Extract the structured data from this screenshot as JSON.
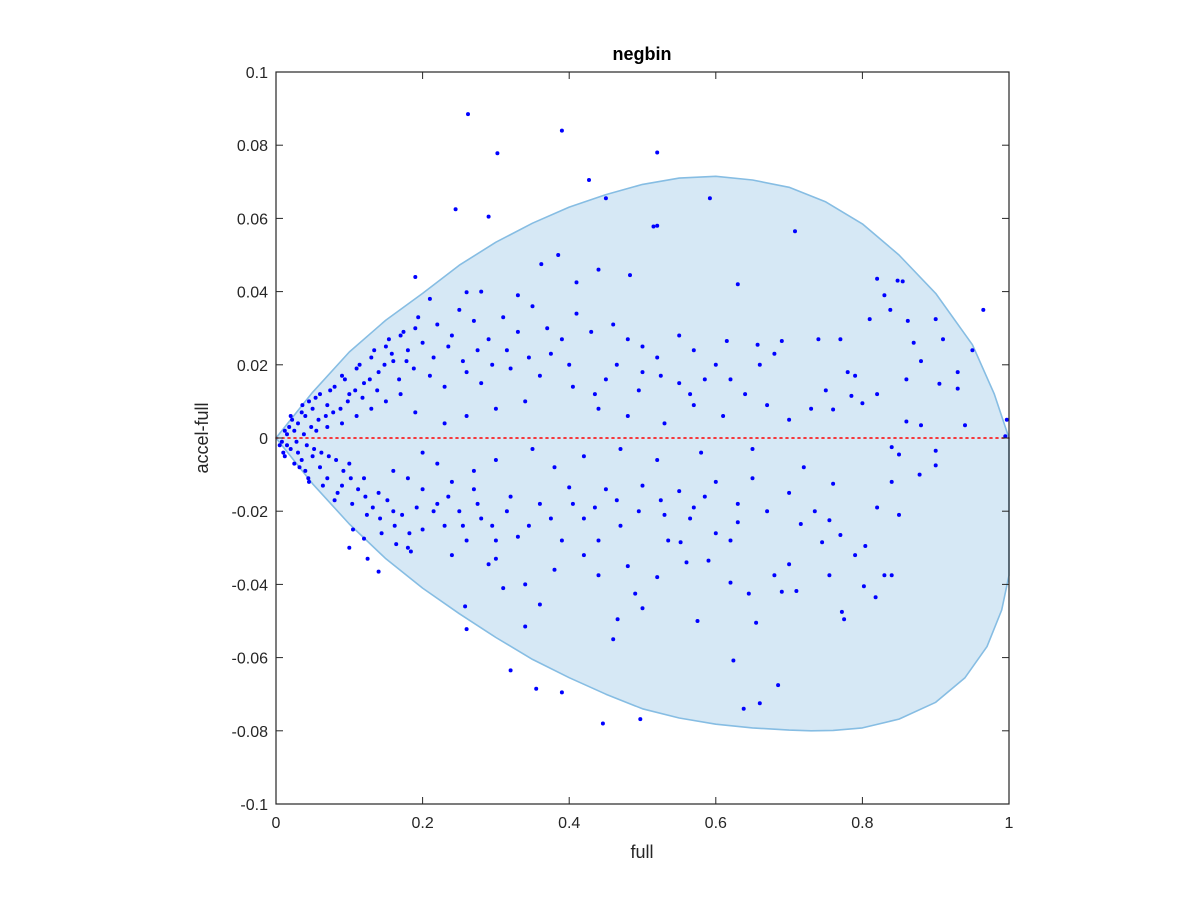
{
  "chart_data": {
    "type": "scatter",
    "title": "negbin",
    "xlabel": "full",
    "ylabel": "accel-full",
    "xlim": [
      0,
      1
    ],
    "ylim": [
      -0.1,
      0.1
    ],
    "x_ticks": [
      0,
      0.2,
      0.4,
      0.6,
      0.8,
      1
    ],
    "x_tick_labels": [
      "0",
      "0.2",
      "0.4",
      "0.6",
      "0.8",
      "1"
    ],
    "y_ticks": [
      -0.1,
      -0.08,
      -0.06,
      -0.04,
      -0.02,
      0,
      0.02,
      0.04,
      0.06,
      0.08,
      0.1
    ],
    "y_tick_labels": [
      "-0.1",
      "-0.08",
      "-0.06",
      "-0.04",
      "-0.02",
      "0",
      "0.02",
      "0.04",
      "0.06",
      "0.08",
      "0.1"
    ],
    "grid": false,
    "colors": {
      "points": "#0000ff",
      "region_fill": "#d6e8f5",
      "region_edge": "#86bde3",
      "reference_line": "#ff0000"
    },
    "reference_line": {
      "y": 0,
      "style": "dotted"
    },
    "region_upper": [
      {
        "x": 0,
        "y": 0
      },
      {
        "x": 0.05,
        "y": 0.0125
      },
      {
        "x": 0.1,
        "y": 0.0235
      },
      {
        "x": 0.15,
        "y": 0.0322
      },
      {
        "x": 0.2,
        "y": 0.0395
      },
      {
        "x": 0.25,
        "y": 0.0472
      },
      {
        "x": 0.3,
        "y": 0.0535
      },
      {
        "x": 0.35,
        "y": 0.0587
      },
      {
        "x": 0.4,
        "y": 0.0631
      },
      {
        "x": 0.45,
        "y": 0.0665
      },
      {
        "x": 0.5,
        "y": 0.0693
      },
      {
        "x": 0.55,
        "y": 0.071
      },
      {
        "x": 0.6,
        "y": 0.0715
      },
      {
        "x": 0.65,
        "y": 0.0705
      },
      {
        "x": 0.7,
        "y": 0.0685
      },
      {
        "x": 0.75,
        "y": 0.0645
      },
      {
        "x": 0.8,
        "y": 0.0585
      },
      {
        "x": 0.85,
        "y": 0.05
      },
      {
        "x": 0.9,
        "y": 0.0395
      },
      {
        "x": 0.95,
        "y": 0.0255
      },
      {
        "x": 0.98,
        "y": 0.012
      },
      {
        "x": 1.0,
        "y": 0.0
      }
    ],
    "region_lower": [
      {
        "x": 0,
        "y": 0
      },
      {
        "x": 0.05,
        "y": -0.0125
      },
      {
        "x": 0.1,
        "y": -0.0235
      },
      {
        "x": 0.15,
        "y": -0.033
      },
      {
        "x": 0.2,
        "y": -0.041
      },
      {
        "x": 0.25,
        "y": -0.048
      },
      {
        "x": 0.3,
        "y": -0.0545
      },
      {
        "x": 0.35,
        "y": -0.0605
      },
      {
        "x": 0.4,
        "y": -0.0655
      },
      {
        "x": 0.45,
        "y": -0.07
      },
      {
        "x": 0.5,
        "y": -0.074
      },
      {
        "x": 0.55,
        "y": -0.0765
      },
      {
        "x": 0.6,
        "y": -0.0782
      },
      {
        "x": 0.65,
        "y": -0.0792
      },
      {
        "x": 0.7,
        "y": -0.0798
      },
      {
        "x": 0.73,
        "y": -0.08
      },
      {
        "x": 0.76,
        "y": -0.0799
      },
      {
        "x": 0.8,
        "y": -0.0792
      },
      {
        "x": 0.85,
        "y": -0.0768
      },
      {
        "x": 0.9,
        "y": -0.0722
      },
      {
        "x": 0.94,
        "y": -0.0655
      },
      {
        "x": 0.97,
        "y": -0.057
      },
      {
        "x": 0.99,
        "y": -0.047
      },
      {
        "x": 1.0,
        "y": -0.0375
      },
      {
        "x": 1.0,
        "y": 0.0
      }
    ],
    "points": [
      [
        0.262,
        0.0885
      ],
      [
        0.39,
        0.084
      ],
      [
        0.302,
        0.0778
      ],
      [
        0.52,
        0.078
      ],
      [
        0.427,
        0.0705
      ],
      [
        0.245,
        0.0625
      ],
      [
        0.29,
        0.0605
      ],
      [
        0.45,
        0.0655
      ],
      [
        0.592,
        0.0655
      ],
      [
        0.708,
        0.0565
      ],
      [
        0.52,
        0.058
      ],
      [
        0.515,
        0.0578
      ],
      [
        0.19,
        0.044
      ],
      [
        0.483,
        0.0445
      ],
      [
        0.965,
        0.035
      ],
      [
        0.848,
        0.043
      ],
      [
        0.855,
        0.0428
      ],
      [
        0.82,
        0.0435
      ],
      [
        0.83,
        0.039
      ],
      [
        0.838,
        0.035
      ],
      [
        0.21,
        0.038
      ],
      [
        0.26,
        0.0398
      ],
      [
        0.28,
        0.04
      ],
      [
        0.33,
        0.039
      ],
      [
        0.41,
        0.0425
      ],
      [
        0.362,
        0.0475
      ],
      [
        0.385,
        0.05
      ],
      [
        0.44,
        0.046
      ],
      [
        0.63,
        0.042
      ],
      [
        0.81,
        0.0325
      ],
      [
        0.9,
        0.0325
      ],
      [
        0.862,
        0.032
      ],
      [
        0.95,
        0.024
      ],
      [
        0.93,
        0.0135
      ],
      [
        0.905,
        0.0148
      ],
      [
        0.997,
        0.005
      ],
      [
        0.995,
        0.0005
      ],
      [
        0.74,
        0.027
      ],
      [
        0.77,
        0.027
      ],
      [
        0.69,
        0.0265
      ],
      [
        0.615,
        0.0265
      ],
      [
        0.657,
        0.0255
      ],
      [
        0.68,
        0.023
      ],
      [
        0.66,
        0.02
      ],
      [
        0.79,
        0.017
      ],
      [
        0.785,
        0.0115
      ],
      [
        0.76,
        0.0078
      ],
      [
        0.8,
        0.0095
      ],
      [
        0.88,
        0.0035
      ],
      [
        0.86,
        0.0045
      ],
      [
        0.84,
        -0.0025
      ],
      [
        0.85,
        -0.0045
      ],
      [
        0.878,
        -0.01
      ],
      [
        0.9,
        -0.0075
      ],
      [
        0.9,
        -0.0035
      ],
      [
        0.94,
        0.0035
      ],
      [
        0.82,
        -0.019
      ],
      [
        0.85,
        -0.021
      ],
      [
        0.84,
        -0.012
      ],
      [
        0.76,
        -0.0125
      ],
      [
        0.735,
        -0.02
      ],
      [
        0.755,
        -0.0225
      ],
      [
        0.79,
        -0.032
      ],
      [
        0.802,
        -0.0405
      ],
      [
        0.818,
        -0.0435
      ],
      [
        0.84,
        -0.0375
      ],
      [
        0.775,
        -0.0495
      ],
      [
        0.772,
        -0.0475
      ],
      [
        0.755,
        -0.0375
      ],
      [
        0.7,
        -0.0345
      ],
      [
        0.716,
        -0.0235
      ],
      [
        0.71,
        -0.0418
      ],
      [
        0.68,
        -0.0375
      ],
      [
        0.69,
        -0.042
      ],
      [
        0.745,
        -0.0285
      ],
      [
        0.77,
        -0.0265
      ],
      [
        0.804,
        -0.0295
      ],
      [
        0.83,
        -0.0375
      ],
      [
        0.685,
        -0.0675
      ],
      [
        0.66,
        -0.0725
      ],
      [
        0.638,
        -0.074
      ],
      [
        0.624,
        -0.0608
      ],
      [
        0.655,
        -0.0505
      ],
      [
        0.62,
        -0.0395
      ],
      [
        0.645,
        -0.0425
      ],
      [
        0.62,
        -0.028
      ],
      [
        0.63,
        -0.023
      ],
      [
        0.59,
        -0.0335
      ],
      [
        0.575,
        -0.05
      ],
      [
        0.552,
        -0.0285
      ],
      [
        0.535,
        -0.028
      ],
      [
        0.5,
        -0.0465
      ],
      [
        0.49,
        -0.0425
      ],
      [
        0.466,
        -0.0495
      ],
      [
        0.46,
        -0.055
      ],
      [
        0.44,
        -0.0375
      ],
      [
        0.42,
        -0.032
      ],
      [
        0.39,
        -0.028
      ],
      [
        0.36,
        -0.0455
      ],
      [
        0.355,
        -0.0685
      ],
      [
        0.39,
        -0.0695
      ],
      [
        0.446,
        -0.078
      ],
      [
        0.497,
        -0.0768
      ],
      [
        0.32,
        -0.0635
      ],
      [
        0.34,
        -0.0515
      ],
      [
        0.31,
        -0.041
      ],
      [
        0.258,
        -0.046
      ],
      [
        0.26,
        -0.0522
      ],
      [
        0.24,
        -0.032
      ],
      [
        0.29,
        -0.0345
      ],
      [
        0.3,
        -0.028
      ],
      [
        0.33,
        -0.027
      ],
      [
        0.28,
        -0.022
      ],
      [
        0.25,
        -0.02
      ],
      [
        0.2,
        -0.025
      ],
      [
        0.18,
        -0.03
      ],
      [
        0.14,
        -0.0365
      ],
      [
        0.125,
        -0.033
      ],
      [
        0.12,
        -0.0275
      ],
      [
        0.1,
        -0.03
      ],
      [
        0.105,
        -0.025
      ],
      [
        0.16,
        -0.02
      ],
      [
        0.22,
        -0.018
      ],
      [
        0.4,
        -0.0135
      ],
      [
        0.45,
        -0.014
      ],
      [
        0.5,
        -0.013
      ],
      [
        0.55,
        -0.0145
      ],
      [
        0.6,
        -0.012
      ],
      [
        0.65,
        -0.011
      ],
      [
        0.7,
        -0.015
      ],
      [
        0.72,
        -0.008
      ],
      [
        0.65,
        -0.003
      ],
      [
        0.58,
        -0.004
      ],
      [
        0.52,
        -0.006
      ],
      [
        0.47,
        -0.003
      ],
      [
        0.42,
        -0.005
      ],
      [
        0.38,
        -0.008
      ],
      [
        0.35,
        -0.003
      ],
      [
        0.3,
        -0.006
      ],
      [
        0.27,
        -0.009
      ],
      [
        0.24,
        -0.012
      ],
      [
        0.22,
        -0.007
      ],
      [
        0.2,
        -0.004
      ],
      [
        0.18,
        -0.011
      ],
      [
        0.16,
        -0.009
      ],
      [
        0.14,
        -0.015
      ],
      [
        0.12,
        -0.011
      ],
      [
        0.1,
        -0.007
      ],
      [
        0.09,
        -0.013
      ],
      [
        0.08,
        -0.017
      ],
      [
        0.07,
        -0.011
      ],
      [
        0.06,
        -0.008
      ],
      [
        0.05,
        -0.005
      ],
      [
        0.045,
        -0.012
      ],
      [
        0.04,
        -0.009
      ],
      [
        0.035,
        -0.006
      ],
      [
        0.03,
        -0.004
      ],
      [
        0.025,
        -0.007
      ],
      [
        0.02,
        -0.003
      ],
      [
        0.015,
        -0.002
      ],
      [
        0.01,
        -0.004
      ],
      [
        0.008,
        -0.001
      ],
      [
        0.005,
        -0.002
      ],
      [
        0.012,
        0.002
      ],
      [
        0.018,
        0.003
      ],
      [
        0.022,
        0.005
      ],
      [
        0.03,
        0.004
      ],
      [
        0.035,
        0.007
      ],
      [
        0.04,
        0.006
      ],
      [
        0.045,
        0.01
      ],
      [
        0.05,
        0.008
      ],
      [
        0.06,
        0.012
      ],
      [
        0.07,
        0.009
      ],
      [
        0.08,
        0.014
      ],
      [
        0.09,
        0.017
      ],
      [
        0.1,
        0.012
      ],
      [
        0.11,
        0.019
      ],
      [
        0.12,
        0.015
      ],
      [
        0.13,
        0.022
      ],
      [
        0.14,
        0.018
      ],
      [
        0.15,
        0.025
      ],
      [
        0.16,
        0.021
      ],
      [
        0.17,
        0.028
      ],
      [
        0.18,
        0.024
      ],
      [
        0.19,
        0.03
      ],
      [
        0.2,
        0.026
      ],
      [
        0.22,
        0.031
      ],
      [
        0.24,
        0.028
      ],
      [
        0.25,
        0.035
      ],
      [
        0.27,
        0.032
      ],
      [
        0.29,
        0.027
      ],
      [
        0.31,
        0.033
      ],
      [
        0.33,
        0.029
      ],
      [
        0.35,
        0.036
      ],
      [
        0.37,
        0.03
      ],
      [
        0.39,
        0.027
      ],
      [
        0.41,
        0.034
      ],
      [
        0.43,
        0.029
      ],
      [
        0.46,
        0.031
      ],
      [
        0.48,
        0.027
      ],
      [
        0.5,
        0.025
      ],
      [
        0.52,
        0.022
      ],
      [
        0.55,
        0.028
      ],
      [
        0.57,
        0.024
      ],
      [
        0.6,
        0.02
      ],
      [
        0.62,
        0.016
      ],
      [
        0.64,
        0.012
      ],
      [
        0.67,
        0.009
      ],
      [
        0.7,
        0.005
      ],
      [
        0.73,
        0.008
      ],
      [
        0.75,
        0.013
      ],
      [
        0.78,
        0.018
      ],
      [
        0.82,
        0.012
      ],
      [
        0.86,
        0.016
      ],
      [
        0.88,
        0.021
      ],
      [
        0.91,
        0.027
      ],
      [
        0.93,
        0.018
      ],
      [
        0.87,
        0.026
      ],
      [
        0.55,
        0.015
      ],
      [
        0.5,
        0.018
      ],
      [
        0.45,
        0.016
      ],
      [
        0.4,
        0.02
      ],
      [
        0.36,
        0.017
      ],
      [
        0.32,
        0.019
      ],
      [
        0.28,
        0.015
      ],
      [
        0.26,
        0.018
      ],
      [
        0.23,
        0.014
      ],
      [
        0.21,
        0.017
      ],
      [
        0.17,
        0.012
      ],
      [
        0.15,
        0.01
      ],
      [
        0.13,
        0.008
      ],
      [
        0.11,
        0.006
      ],
      [
        0.09,
        0.004
      ],
      [
        0.07,
        0.003
      ],
      [
        0.055,
        0.002
      ],
      [
        0.44,
        0.008
      ],
      [
        0.48,
        0.006
      ],
      [
        0.53,
        0.004
      ],
      [
        0.57,
        0.009
      ],
      [
        0.61,
        0.006
      ],
      [
        0.34,
        0.01
      ],
      [
        0.3,
        0.008
      ],
      [
        0.26,
        0.006
      ],
      [
        0.23,
        0.004
      ],
      [
        0.19,
        0.007
      ],
      [
        0.36,
        -0.018
      ],
      [
        0.32,
        -0.016
      ],
      [
        0.27,
        -0.014
      ],
      [
        0.23,
        -0.024
      ],
      [
        0.26,
        -0.028
      ],
      [
        0.42,
        -0.022
      ],
      [
        0.47,
        -0.024
      ],
      [
        0.53,
        -0.021
      ],
      [
        0.57,
        -0.019
      ],
      [
        0.63,
        -0.018
      ],
      [
        0.67,
        -0.02
      ],
      [
        0.6,
        -0.026
      ],
      [
        0.56,
        -0.034
      ],
      [
        0.52,
        -0.038
      ],
      [
        0.48,
        -0.035
      ],
      [
        0.44,
        -0.028
      ],
      [
        0.38,
        -0.036
      ],
      [
        0.34,
        -0.04
      ],
      [
        0.3,
        -0.033
      ],
      [
        0.2,
        -0.014
      ],
      [
        0.015,
        0.001
      ],
      [
        0.025,
        0.002
      ],
      [
        0.028,
        -0.001
      ],
      [
        0.038,
        0.001
      ],
      [
        0.042,
        -0.002
      ],
      [
        0.048,
        0.003
      ],
      [
        0.052,
        -0.003
      ],
      [
        0.058,
        0.005
      ],
      [
        0.062,
        -0.004
      ],
      [
        0.068,
        0.006
      ],
      [
        0.072,
        -0.005
      ],
      [
        0.078,
        0.007
      ],
      [
        0.082,
        -0.006
      ],
      [
        0.088,
        0.008
      ],
      [
        0.092,
        -0.009
      ],
      [
        0.098,
        0.01
      ],
      [
        0.102,
        -0.011
      ],
      [
        0.108,
        0.013
      ],
      [
        0.112,
        -0.014
      ],
      [
        0.118,
        0.011
      ],
      [
        0.122,
        -0.016
      ],
      [
        0.128,
        0.016
      ],
      [
        0.132,
        -0.019
      ],
      [
        0.138,
        0.013
      ],
      [
        0.142,
        -0.022
      ],
      [
        0.148,
        0.02
      ],
      [
        0.152,
        -0.017
      ],
      [
        0.158,
        0.023
      ],
      [
        0.162,
        -0.024
      ],
      [
        0.168,
        0.016
      ],
      [
        0.172,
        -0.021
      ],
      [
        0.178,
        0.021
      ],
      [
        0.182,
        -0.026
      ],
      [
        0.188,
        0.019
      ],
      [
        0.192,
        -0.019
      ],
      [
        0.215,
        0.022
      ],
      [
        0.235,
        0.025
      ],
      [
        0.255,
        0.021
      ],
      [
        0.275,
        0.024
      ],
      [
        0.295,
        0.02
      ],
      [
        0.315,
        0.024
      ],
      [
        0.345,
        0.022
      ],
      [
        0.375,
        0.023
      ],
      [
        0.405,
        0.014
      ],
      [
        0.435,
        0.012
      ],
      [
        0.465,
        0.02
      ],
      [
        0.495,
        0.013
      ],
      [
        0.525,
        0.017
      ],
      [
        0.565,
        0.012
      ],
      [
        0.585,
        0.016
      ],
      [
        0.215,
        -0.02
      ],
      [
        0.235,
        -0.016
      ],
      [
        0.255,
        -0.024
      ],
      [
        0.275,
        -0.018
      ],
      [
        0.295,
        -0.024
      ],
      [
        0.315,
        -0.02
      ],
      [
        0.345,
        -0.024
      ],
      [
        0.375,
        -0.022
      ],
      [
        0.405,
        -0.018
      ],
      [
        0.435,
        -0.019
      ],
      [
        0.465,
        -0.017
      ],
      [
        0.495,
        -0.02
      ],
      [
        0.525,
        -0.017
      ],
      [
        0.565,
        -0.022
      ],
      [
        0.585,
        -0.016
      ],
      [
        0.012,
        -0.005
      ],
      [
        0.02,
        0.006
      ],
      [
        0.032,
        -0.008
      ],
      [
        0.036,
        0.009
      ],
      [
        0.044,
        -0.011
      ],
      [
        0.054,
        0.011
      ],
      [
        0.064,
        -0.013
      ],
      [
        0.074,
        0.013
      ],
      [
        0.084,
        -0.015
      ],
      [
        0.094,
        0.016
      ],
      [
        0.104,
        -0.018
      ],
      [
        0.114,
        0.02
      ],
      [
        0.124,
        -0.021
      ],
      [
        0.134,
        0.024
      ],
      [
        0.144,
        -0.026
      ],
      [
        0.154,
        0.027
      ],
      [
        0.164,
        -0.029
      ],
      [
        0.174,
        0.029
      ],
      [
        0.184,
        -0.031
      ],
      [
        0.194,
        0.033
      ]
    ]
  }
}
